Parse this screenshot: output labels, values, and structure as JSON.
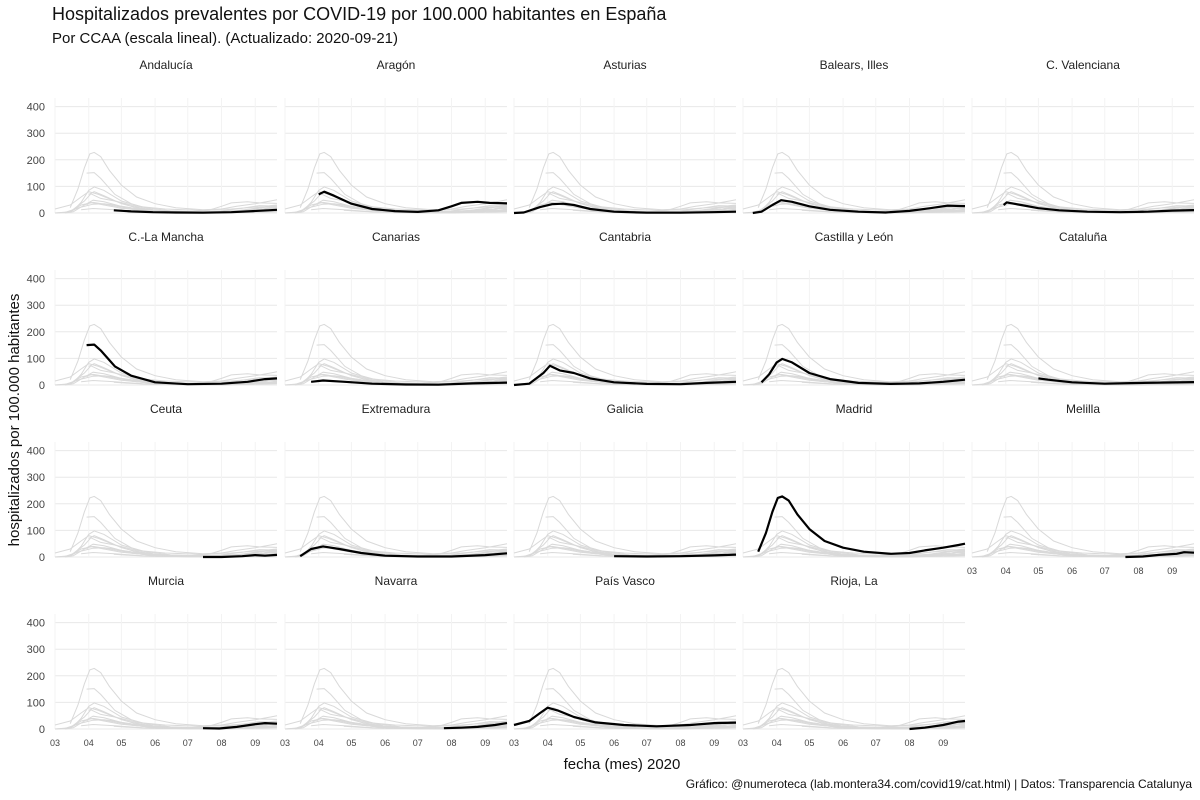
{
  "title": "Hospitalizados prevalentes por COVID-19 por 100.000 habitantes en España",
  "subtitle": "Por CCAA  (escala lineal). (Actualizado: 2020-09-21)",
  "caption": "Gráfico: @numeroteca (lab.montera34.com/covid19/cat.html) | Datos: Transparencia Catalunya",
  "colors": {
    "highlight": "#000000",
    "background_series": "#d9d9d9",
    "grid": "#e8e8e8"
  },
  "chart_data": {
    "type": "line",
    "layout": "small-multiples",
    "xlabel": "fecha (mes) 2020",
    "ylabel": "hospitalizados por 100.000 habitantes",
    "x_axis": {
      "type": "month",
      "ticks": [
        "03",
        "04",
        "05",
        "06",
        "07",
        "08",
        "09"
      ],
      "range": [
        "2020-03-01",
        "2020-09-21"
      ]
    },
    "y_axis": {
      "ticks": [
        0,
        100,
        200,
        300,
        400
      ],
      "range": [
        0,
        480
      ]
    },
    "grid": true,
    "legend": "none",
    "panels": [
      {
        "name": "Andalucía",
        "points": [
          [
            "2020-04-24",
            10
          ],
          [
            "2020-05-10",
            6
          ],
          [
            "2020-05-30",
            3
          ],
          [
            "2020-06-20",
            2
          ],
          [
            "2020-07-15",
            1
          ],
          [
            "2020-08-10",
            3
          ],
          [
            "2020-08-30",
            7
          ],
          [
            "2020-09-21",
            12
          ]
        ]
      },
      {
        "name": "Aragón",
        "points": [
          [
            "2020-04-01",
            70
          ],
          [
            "2020-04-06",
            80
          ],
          [
            "2020-04-15",
            65
          ],
          [
            "2020-05-01",
            35
          ],
          [
            "2020-05-20",
            15
          ],
          [
            "2020-06-10",
            7
          ],
          [
            "2020-07-01",
            4
          ],
          [
            "2020-07-20",
            10
          ],
          [
            "2020-08-01",
            25
          ],
          [
            "2020-08-10",
            38
          ],
          [
            "2020-08-25",
            42
          ],
          [
            "2020-09-05",
            38
          ],
          [
            "2020-09-21",
            36
          ]
        ]
      },
      {
        "name": "Asturias",
        "points": [
          [
            "2020-03-01",
            0
          ],
          [
            "2020-03-10",
            2
          ],
          [
            "2020-03-25",
            22
          ],
          [
            "2020-04-05",
            33
          ],
          [
            "2020-04-15",
            35
          ],
          [
            "2020-04-25",
            30
          ],
          [
            "2020-05-10",
            15
          ],
          [
            "2020-06-01",
            5
          ],
          [
            "2020-07-01",
            1
          ],
          [
            "2020-08-01",
            1
          ],
          [
            "2020-08-30",
            3
          ],
          [
            "2020-09-21",
            5
          ]
        ]
      },
      {
        "name": "Balears, Illes",
        "points": [
          [
            "2020-03-10",
            0
          ],
          [
            "2020-03-18",
            5
          ],
          [
            "2020-03-28",
            30
          ],
          [
            "2020-04-05",
            48
          ],
          [
            "2020-04-15",
            42
          ],
          [
            "2020-05-01",
            25
          ],
          [
            "2020-05-20",
            12
          ],
          [
            "2020-06-15",
            5
          ],
          [
            "2020-07-10",
            2
          ],
          [
            "2020-08-01",
            8
          ],
          [
            "2020-08-20",
            18
          ],
          [
            "2020-09-05",
            28
          ],
          [
            "2020-09-21",
            26
          ]
        ]
      },
      {
        "name": "C. Valenciana",
        "points": [
          [
            "2020-03-30",
            30
          ],
          [
            "2020-04-02",
            40
          ],
          [
            "2020-04-15",
            30
          ],
          [
            "2020-05-01",
            18
          ],
          [
            "2020-05-20",
            10
          ],
          [
            "2020-06-15",
            5
          ],
          [
            "2020-07-15",
            3
          ],
          [
            "2020-08-10",
            5
          ],
          [
            "2020-09-01",
            9
          ],
          [
            "2020-09-21",
            11
          ]
        ]
      },
      {
        "name": "C.-La Mancha",
        "points": [
          [
            "2020-03-30",
            150
          ],
          [
            "2020-04-06",
            152
          ],
          [
            "2020-04-12",
            130
          ],
          [
            "2020-04-25",
            70
          ],
          [
            "2020-05-10",
            35
          ],
          [
            "2020-06-01",
            10
          ],
          [
            "2020-07-01",
            3
          ],
          [
            "2020-08-01",
            5
          ],
          [
            "2020-08-25",
            12
          ],
          [
            "2020-09-10",
            22
          ],
          [
            "2020-09-21",
            25
          ]
        ]
      },
      {
        "name": "Canarias",
        "points": [
          [
            "2020-03-25",
            12
          ],
          [
            "2020-04-05",
            17
          ],
          [
            "2020-04-25",
            12
          ],
          [
            "2020-05-20",
            5
          ],
          [
            "2020-06-20",
            2
          ],
          [
            "2020-07-20",
            1
          ],
          [
            "2020-08-20",
            6
          ],
          [
            "2020-09-21",
            9
          ]
        ]
      },
      {
        "name": "Cantabria",
        "points": [
          [
            "2020-03-01",
            0
          ],
          [
            "2020-03-15",
            5
          ],
          [
            "2020-03-28",
            45
          ],
          [
            "2020-04-03",
            72
          ],
          [
            "2020-04-12",
            55
          ],
          [
            "2020-04-25",
            45
          ],
          [
            "2020-05-10",
            25
          ],
          [
            "2020-06-01",
            10
          ],
          [
            "2020-07-01",
            4
          ],
          [
            "2020-08-01",
            3
          ],
          [
            "2020-08-25",
            8
          ],
          [
            "2020-09-21",
            12
          ]
        ]
      },
      {
        "name": "Castilla y León",
        "points": [
          [
            "2020-03-18",
            10
          ],
          [
            "2020-03-25",
            40
          ],
          [
            "2020-04-01",
            85
          ],
          [
            "2020-04-06",
            98
          ],
          [
            "2020-04-15",
            85
          ],
          [
            "2020-05-01",
            45
          ],
          [
            "2020-05-20",
            22
          ],
          [
            "2020-06-15",
            8
          ],
          [
            "2020-07-15",
            4
          ],
          [
            "2020-08-10",
            6
          ],
          [
            "2020-09-01",
            12
          ],
          [
            "2020-09-21",
            20
          ]
        ]
      },
      {
        "name": "Cataluña",
        "points": [
          [
            "2020-05-01",
            25
          ],
          [
            "2020-05-10",
            20
          ],
          [
            "2020-06-01",
            10
          ],
          [
            "2020-07-01",
            5
          ],
          [
            "2020-07-25",
            7
          ],
          [
            "2020-08-20",
            9
          ],
          [
            "2020-09-21",
            11
          ]
        ]
      },
      {
        "name": "Ceuta",
        "points": [
          [
            "2020-07-15",
            0
          ],
          [
            "2020-08-01",
            0
          ],
          [
            "2020-08-20",
            3
          ],
          [
            "2020-09-01",
            7
          ],
          [
            "2020-09-10",
            5
          ],
          [
            "2020-09-21",
            8
          ]
        ]
      },
      {
        "name": "Extremadura",
        "points": [
          [
            "2020-03-15",
            3
          ],
          [
            "2020-03-25",
            30
          ],
          [
            "2020-04-05",
            40
          ],
          [
            "2020-04-20",
            30
          ],
          [
            "2020-05-10",
            15
          ],
          [
            "2020-06-01",
            5
          ],
          [
            "2020-07-01",
            2
          ],
          [
            "2020-08-01",
            2
          ],
          [
            "2020-09-01",
            7
          ],
          [
            "2020-09-21",
            14
          ]
        ]
      },
      {
        "name": "Galicia",
        "points": [
          [
            "2020-06-01",
            3
          ],
          [
            "2020-07-01",
            2
          ],
          [
            "2020-08-01",
            3
          ],
          [
            "2020-09-01",
            6
          ],
          [
            "2020-09-21",
            9
          ]
        ]
      },
      {
        "name": "Madrid",
        "points": [
          [
            "2020-03-15",
            20
          ],
          [
            "2020-03-22",
            90
          ],
          [
            "2020-03-28",
            170
          ],
          [
            "2020-04-02",
            222
          ],
          [
            "2020-04-06",
            228
          ],
          [
            "2020-04-12",
            212
          ],
          [
            "2020-04-20",
            160
          ],
          [
            "2020-05-01",
            105
          ],
          [
            "2020-05-15",
            60
          ],
          [
            "2020-06-01",
            35
          ],
          [
            "2020-06-20",
            20
          ],
          [
            "2020-07-15",
            12
          ],
          [
            "2020-08-01",
            15
          ],
          [
            "2020-08-15",
            25
          ],
          [
            "2020-09-01",
            35
          ],
          [
            "2020-09-15",
            45
          ],
          [
            "2020-09-21",
            50
          ]
        ]
      },
      {
        "name": "Melilla",
        "points": [
          [
            "2020-07-20",
            0
          ],
          [
            "2020-08-05",
            2
          ],
          [
            "2020-08-20",
            8
          ],
          [
            "2020-09-05",
            12
          ],
          [
            "2020-09-12",
            18
          ],
          [
            "2020-09-21",
            16
          ]
        ]
      },
      {
        "name": "Murcia",
        "points": [
          [
            "2020-07-15",
            3
          ],
          [
            "2020-07-30",
            2
          ],
          [
            "2020-08-15",
            8
          ],
          [
            "2020-09-01",
            18
          ],
          [
            "2020-09-10",
            22
          ],
          [
            "2020-09-21",
            20
          ]
        ]
      },
      {
        "name": "Navarra",
        "points": [
          [
            "2020-07-25",
            3
          ],
          [
            "2020-08-10",
            5
          ],
          [
            "2020-08-25",
            8
          ],
          [
            "2020-09-10",
            15
          ],
          [
            "2020-09-21",
            22
          ]
        ]
      },
      {
        "name": "País Vasco",
        "points": [
          [
            "2020-03-01",
            15
          ],
          [
            "2020-03-15",
            30
          ],
          [
            "2020-03-25",
            60
          ],
          [
            "2020-04-01",
            80
          ],
          [
            "2020-04-10",
            70
          ],
          [
            "2020-04-25",
            45
          ],
          [
            "2020-05-15",
            25
          ],
          [
            "2020-06-10",
            15
          ],
          [
            "2020-07-10",
            10
          ],
          [
            "2020-08-10",
            15
          ],
          [
            "2020-09-01",
            22
          ],
          [
            "2020-09-21",
            24
          ]
        ]
      },
      {
        "name": "Rioja, La",
        "points": [
          [
            "2020-08-01",
            0
          ],
          [
            "2020-08-15",
            5
          ],
          [
            "2020-09-01",
            15
          ],
          [
            "2020-09-15",
            28
          ],
          [
            "2020-09-21",
            30
          ]
        ]
      }
    ]
  }
}
